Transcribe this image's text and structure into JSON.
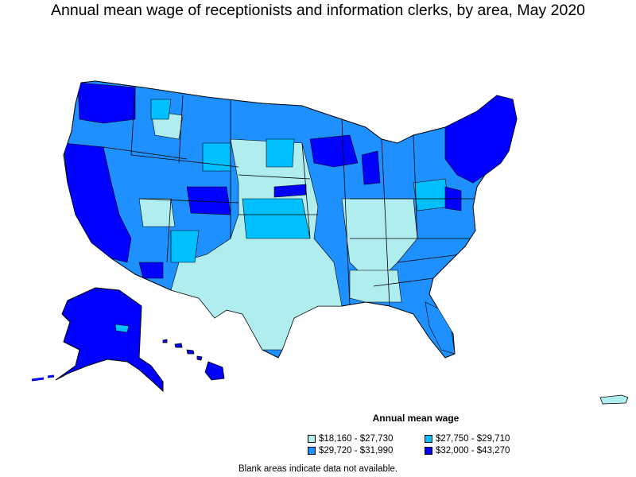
{
  "title": "Annual mean wage of receptionists and information clerks, by area, May 2020",
  "legend": {
    "title": "Annual mean wage",
    "items": [
      {
        "label": "$18,160 - $27,730",
        "color": "#B0EDEE"
      },
      {
        "label": "$27,750 - $29,710",
        "color": "#00BFFF"
      },
      {
        "label": "$29,720 - $31,990",
        "color": "#1E90FF"
      },
      {
        "label": "$32,000 - $43,270",
        "color": "#0000FF"
      }
    ]
  },
  "footnote": "Blank areas indicate data not available."
}
